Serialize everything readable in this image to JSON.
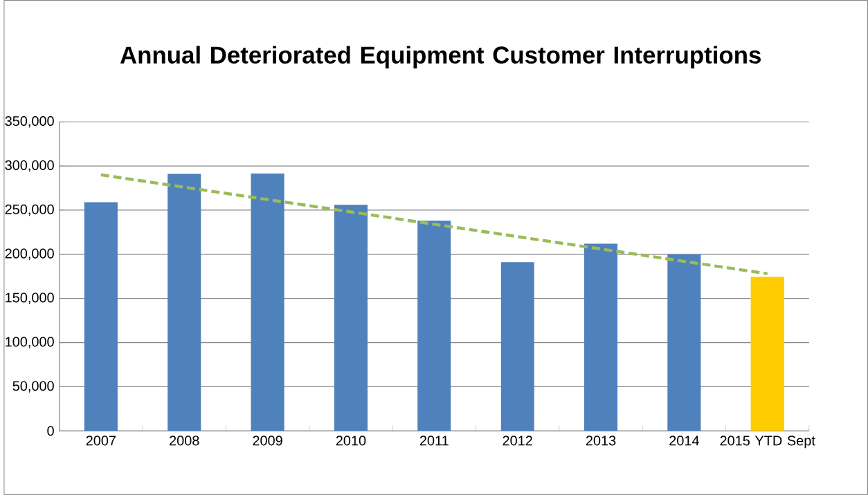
{
  "chart_data": {
    "type": "bar",
    "title": "Annual Deteriorated Equipment Customer Interruptions",
    "categories": [
      "2007",
      "2008",
      "2009",
      "2010",
      "2011",
      "2012",
      "2013",
      "2014",
      "2015 YTD Sept"
    ],
    "series": [
      {
        "colors": [
          "#4f81bd",
          "#4f81bd",
          "#4f81bd",
          "#4f81bd",
          "#4f81bd",
          "#4f81bd",
          "#4f81bd",
          "#4f81bd",
          "#ffcc00"
        ],
        "values": [
          259000,
          291000,
          291500,
          256000,
          238000,
          191000,
          212000,
          200000,
          174500
        ]
      },
      {
        "type": "line",
        "color": "#9bbb59",
        "line_style": "dashed",
        "values": [
          290000,
          276000,
          262000,
          248000,
          234000,
          220000,
          206000,
          192000,
          178000
        ]
      }
    ],
    "ylim": [
      0,
      350000
    ],
    "yticks": [
      {
        "value": 0,
        "label": "0"
      },
      {
        "value": 50000,
        "label": "50,000"
      },
      {
        "value": 100000,
        "label": "100,000"
      },
      {
        "value": 150000,
        "label": "150,000"
      },
      {
        "value": 200000,
        "label": "200,000"
      },
      {
        "value": 250000,
        "label": "250,000"
      },
      {
        "value": 300000,
        "label": "300,000"
      },
      {
        "value": 350000,
        "label": "350,000"
      }
    ],
    "grid": "y"
  }
}
